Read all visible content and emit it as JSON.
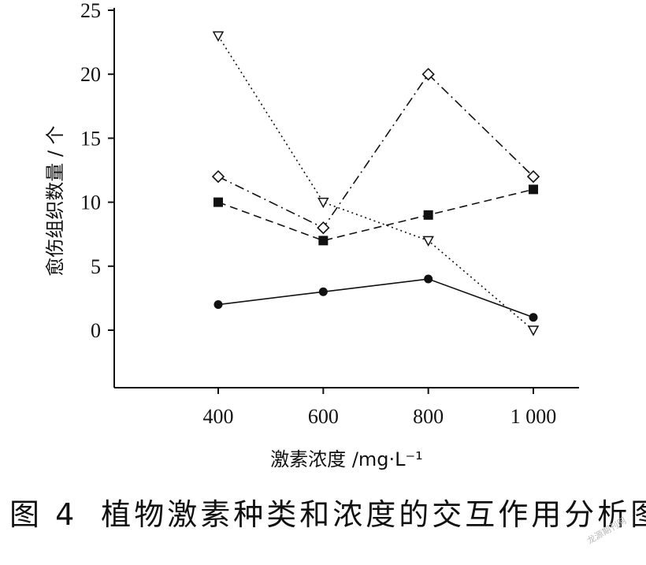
{
  "chart_data": {
    "type": "line",
    "x": [
      400,
      600,
      800,
      1000
    ],
    "x_tick_labels": [
      "400",
      "600",
      "800",
      "1 000"
    ],
    "y_ticks": [
      0,
      5,
      10,
      15,
      20,
      25
    ],
    "ylim": [
      -5,
      25
    ],
    "xlim": [
      200,
      1100
    ],
    "xlabel": "激素浓度 /mg·L⁻¹",
    "ylabel": "愈伤组织数量 / 个",
    "grid": false,
    "legend": "none",
    "series": [
      {
        "marker": "circle-filled",
        "line": "solid",
        "values": [
          2,
          3,
          4,
          1
        ]
      },
      {
        "marker": "square-filled",
        "line": "dashed",
        "values": [
          10,
          7,
          9,
          11
        ]
      },
      {
        "marker": "diamond-open",
        "line": "dash-dot",
        "values": [
          12,
          8,
          20,
          12
        ]
      },
      {
        "marker": "triangle-down-open",
        "line": "dotted",
        "values": [
          23,
          10,
          7,
          0
        ]
      }
    ]
  },
  "caption": {
    "figure_number": "图 4",
    "title": "植物激素种类和浓度的交互作用分析图"
  },
  "watermark": "龙源期刊网"
}
